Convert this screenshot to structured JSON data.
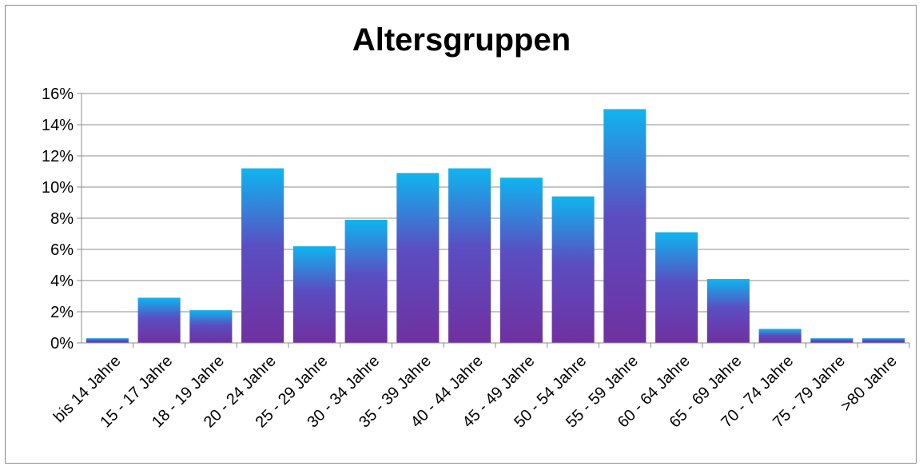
{
  "chart_data": {
    "type": "bar",
    "title": "Altersgruppen",
    "xlabel": "",
    "ylabel": "",
    "categories": [
      "bis 14 Jahre",
      "15 - 17 Jahre",
      "18 - 19 Jahre",
      "20 - 24 Jahre",
      "25 - 29 Jahre",
      "30 - 34 Jahre",
      "35 - 39 Jahre",
      "40 - 44 Jahre",
      "45 - 49 Jahre",
      "50 - 54 Jahre",
      "55 - 59 Jahre",
      "60 - 64 Jahre",
      "65 - 69 Jahre",
      "70 - 74 Jahre",
      "75 - 79 Jahre",
      ">80 Jahre"
    ],
    "values": [
      0.3,
      2.9,
      2.1,
      11.2,
      6.2,
      7.9,
      10.9,
      11.2,
      10.6,
      9.4,
      15.0,
      7.1,
      4.1,
      0.9,
      0.3,
      0.3
    ],
    "value_format": "percent",
    "ylim": [
      0,
      16
    ],
    "yticks": [
      "0%",
      "2%",
      "4%",
      "6%",
      "8%",
      "10%",
      "12%",
      "14%",
      "16%"
    ],
    "grid": true,
    "legend": "none",
    "colors": {
      "bar_top": "#0fb5ef",
      "bar_mid": "#5a4ec2",
      "bar_bottom": "#7030a0",
      "grid": "#8c8c8c"
    }
  }
}
